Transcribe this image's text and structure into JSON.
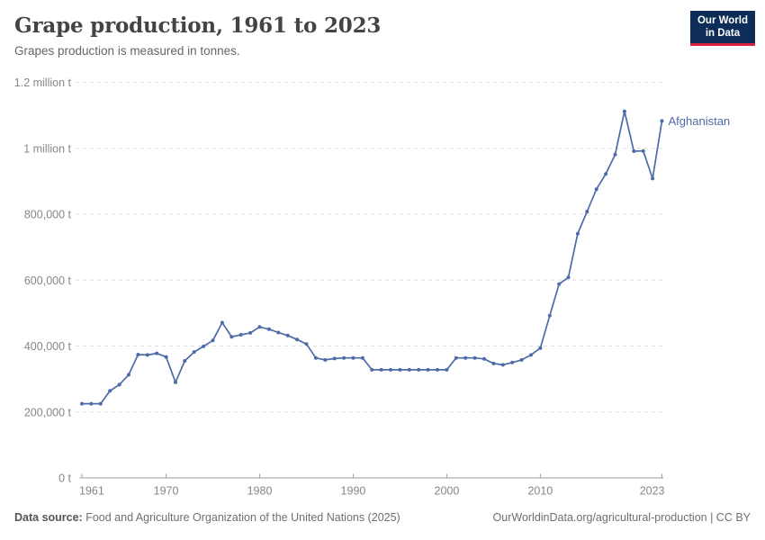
{
  "header": {
    "title": "Grape production, 1961 to 2023",
    "subtitle": "Grapes production is measured in tonnes."
  },
  "logo": {
    "line1": "Our World",
    "line2": "in Data"
  },
  "footer": {
    "source_label": "Data source:",
    "source_text": " Food and Agriculture Organization of the United Nations (2025)",
    "credit": "OurWorldinData.org/agricultural-production | CC BY"
  },
  "colors": {
    "series_blue": "#4C6BA8",
    "logo_navy": "#0d2d58",
    "logo_red": "#d8243c",
    "gridline": "#dedede",
    "axis": "#9e9e9e",
    "tick_label": "#878787"
  },
  "chart_data": {
    "type": "line",
    "title": "Grape production, 1961 to 2023",
    "subtitle": "Grapes production is measured in tonnes.",
    "unit": "tonnes",
    "grid": "horizontal-dashed",
    "legend_position": "end-of-line-label",
    "xlim": [
      1961,
      2023
    ],
    "ylim": [
      0,
      1200000
    ],
    "x_ticks": [
      1961,
      1970,
      1980,
      1990,
      2000,
      2010,
      2023
    ],
    "y_ticks": [
      {
        "value": 0,
        "label": "0 t"
      },
      {
        "value": 200000,
        "label": "200,000 t"
      },
      {
        "value": 400000,
        "label": "400,000 t"
      },
      {
        "value": 600000,
        "label": "600,000 t"
      },
      {
        "value": 800000,
        "label": "800,000 t"
      },
      {
        "value": 1000000,
        "label": "1 million t"
      },
      {
        "value": 1200000,
        "label": "1.2 million t"
      }
    ],
    "x": [
      1961,
      1962,
      1963,
      1964,
      1965,
      1966,
      1967,
      1968,
      1969,
      1970,
      1971,
      1972,
      1973,
      1974,
      1975,
      1976,
      1977,
      1978,
      1979,
      1980,
      1981,
      1982,
      1983,
      1984,
      1985,
      1986,
      1987,
      1988,
      1989,
      1990,
      1991,
      1992,
      1993,
      1994,
      1995,
      1996,
      1997,
      1998,
      1999,
      2000,
      2001,
      2002,
      2003,
      2004,
      2005,
      2006,
      2007,
      2008,
      2009,
      2010,
      2011,
      2012,
      2013,
      2014,
      2015,
      2016,
      2017,
      2018,
      2019,
      2020,
      2021,
      2022,
      2023
    ],
    "series": [
      {
        "name": "Afghanistan",
        "color": "#4C6BA8",
        "values": [
          225000,
          225000,
          225000,
          264000,
          283000,
          313000,
          374000,
          373000,
          378000,
          367000,
          290000,
          355000,
          382000,
          399000,
          417000,
          471000,
          428000,
          434000,
          440000,
          458000,
          451000,
          441000,
          432000,
          420000,
          406000,
          364000,
          358000,
          362000,
          364000,
          364000,
          364000,
          328000,
          328000,
          328000,
          328000,
          328000,
          328000,
          328000,
          328000,
          328000,
          364000,
          364000,
          364000,
          361000,
          347000,
          343000,
          350000,
          358000,
          373000,
          394000,
          492000,
          588000,
          608000,
          741000,
          808000,
          876000,
          922000,
          981000,
          1112000,
          991000,
          992000,
          908000,
          1083000
        ]
      }
    ]
  }
}
